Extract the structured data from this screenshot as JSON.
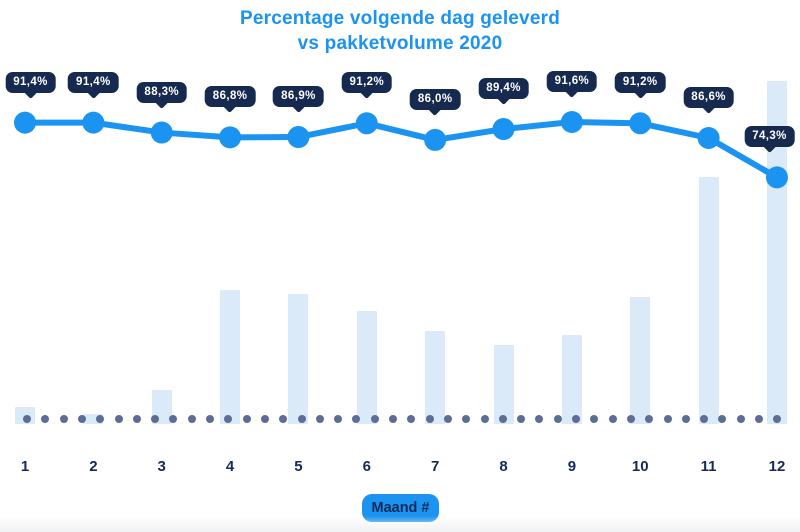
{
  "title": {
    "line1": "Percentage volgende dag geleverd",
    "line2": "vs pakketvolume 2020"
  },
  "x_axis": {
    "button_label": "Maand #"
  },
  "colors": {
    "accent_blue": "#1b93f0",
    "tooltip_navy": "#16294f",
    "label_navy": "#15295b",
    "bar_light_blue": "#daeaf8",
    "dot_slate": "#5c6d96"
  },
  "chart_data": {
    "type": "combo-line-bar",
    "title": "Percentage volgende dag geleverd vs pakketvolume 2020",
    "xlabel": "Maand #",
    "categories": [
      "1",
      "2",
      "3",
      "4",
      "5",
      "6",
      "7",
      "8",
      "9",
      "10",
      "11",
      "12"
    ],
    "series": [
      {
        "name": "Percentage volgende dag geleverd",
        "type": "line",
        "unit": "%",
        "values": [
          91.4,
          91.4,
          88.3,
          86.8,
          86.9,
          91.2,
          86.0,
          89.4,
          91.6,
          91.2,
          86.6,
          74.3
        ],
        "labels": [
          "91,4%",
          "91,4%",
          "88,3%",
          "86,8%",
          "86,9%",
          "91,2%",
          "86,0%",
          "89,4%",
          "91,6%",
          "91,2%",
          "86,6%",
          "74,3%"
        ]
      },
      {
        "name": "pakketvolume",
        "type": "bar",
        "unit": "relative (max=100, axis hidden)",
        "values": [
          5,
          3,
          10,
          39,
          38,
          33,
          27,
          23,
          26,
          37,
          72,
          100
        ]
      }
    ],
    "y_axis": "hidden",
    "grid": "off",
    "legend": "none",
    "baseline_style": "dotted"
  }
}
